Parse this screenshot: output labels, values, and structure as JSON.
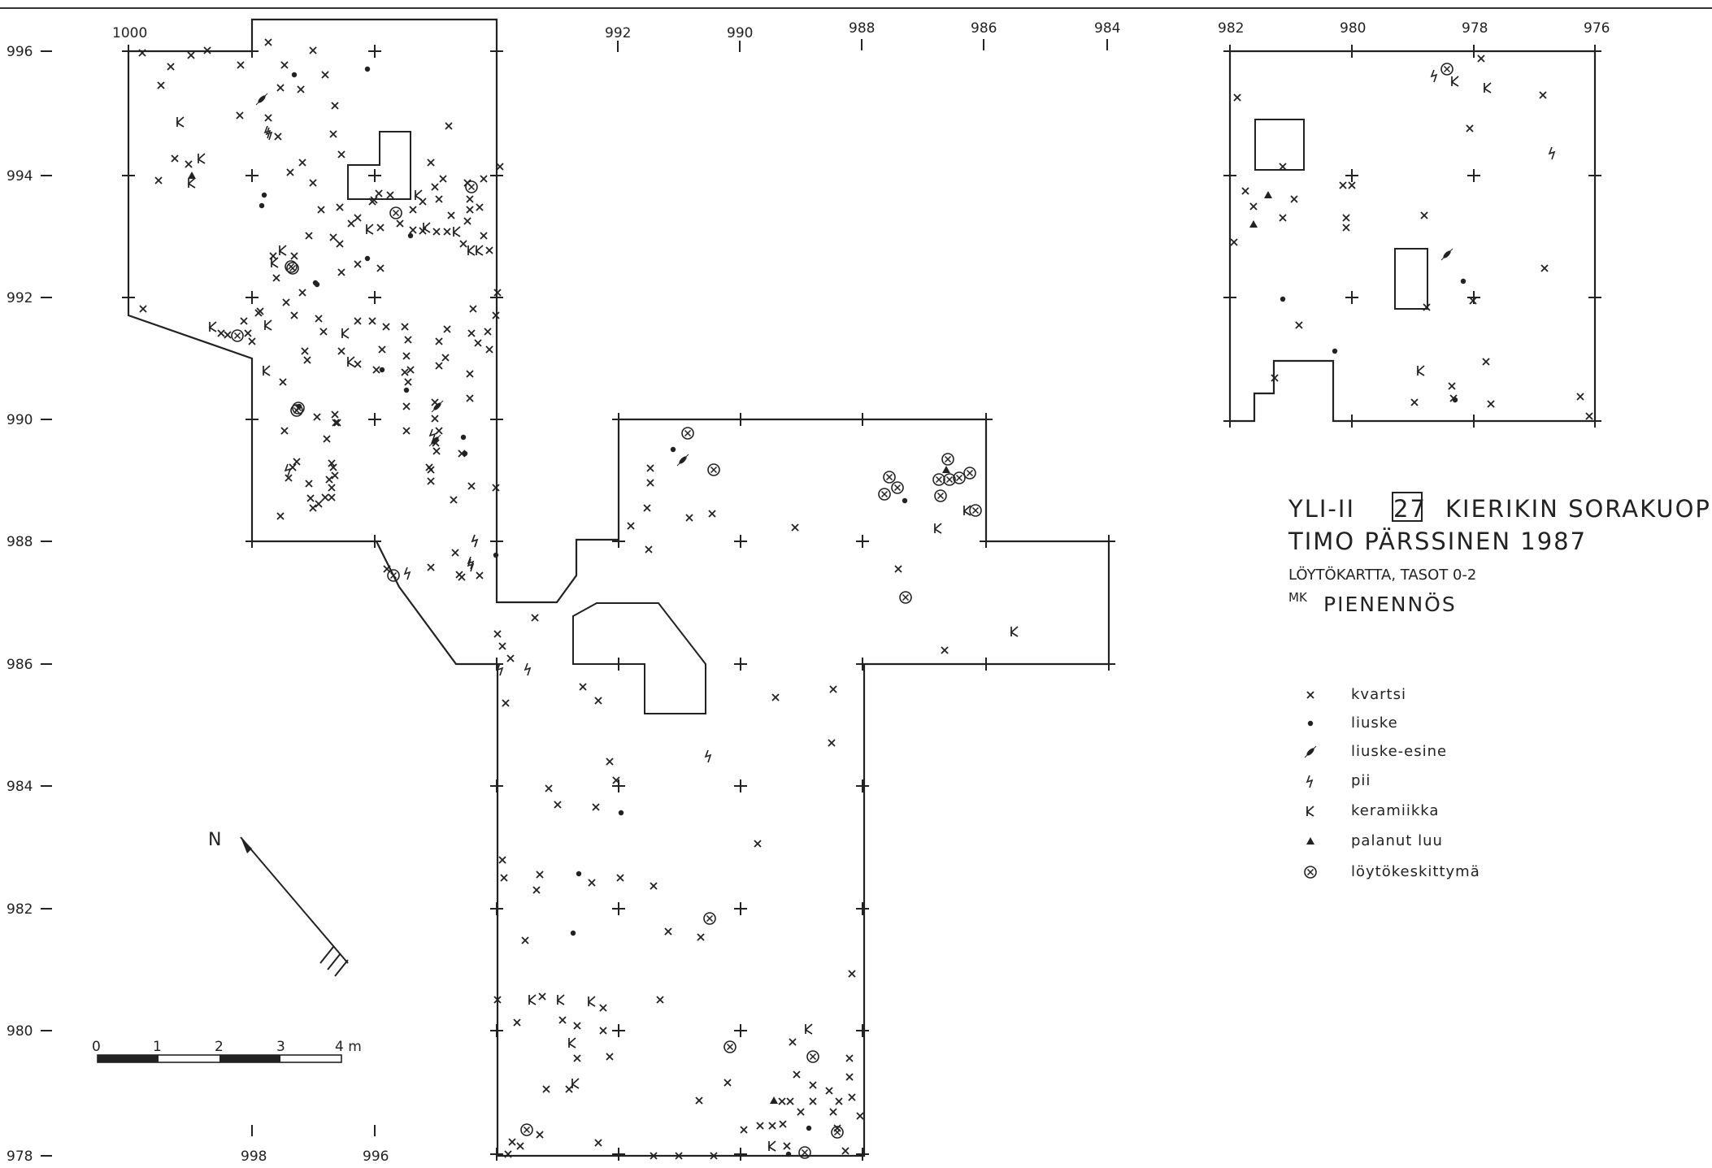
{
  "title": {
    "site_code": "YLI-II",
    "site_number": "27",
    "site_name": "KIERIKIN SORAKUOPPA",
    "author_year": "TIMO PÄRSSINEN 1987",
    "subtitle": "LÖYTÖKARTTA, TASOT 0-2",
    "scale_prefix": "MK",
    "scale_word": "PIENENNÖS"
  },
  "grid": {
    "left_axis_labels": [
      "996",
      "994",
      "992",
      "990",
      "988",
      "986",
      "984",
      "982",
      "980",
      "978"
    ],
    "top_axis_labels": [
      "1000",
      "992",
      "990",
      "988",
      "986",
      "984",
      "982",
      "980",
      "978",
      "976"
    ],
    "bottom_axis_labels": [
      "998",
      "996"
    ]
  },
  "north_arrow": {
    "label": "N"
  },
  "scale_bar": {
    "labels": [
      "0",
      "1",
      "2",
      "3",
      "4 m"
    ]
  },
  "legend": [
    {
      "symbol": "x",
      "label": "kvartsi"
    },
    {
      "symbol": "dot",
      "label": "liuske"
    },
    {
      "symbol": "leaf",
      "label": "liuske-esine"
    },
    {
      "symbol": "bolt",
      "label": "pii"
    },
    {
      "symbol": "K",
      "label": "keramiikka"
    },
    {
      "symbol": "triangle",
      "label": "palanut luu"
    },
    {
      "symbol": "circle-x",
      "label": "löytökeskittymä"
    }
  ]
}
